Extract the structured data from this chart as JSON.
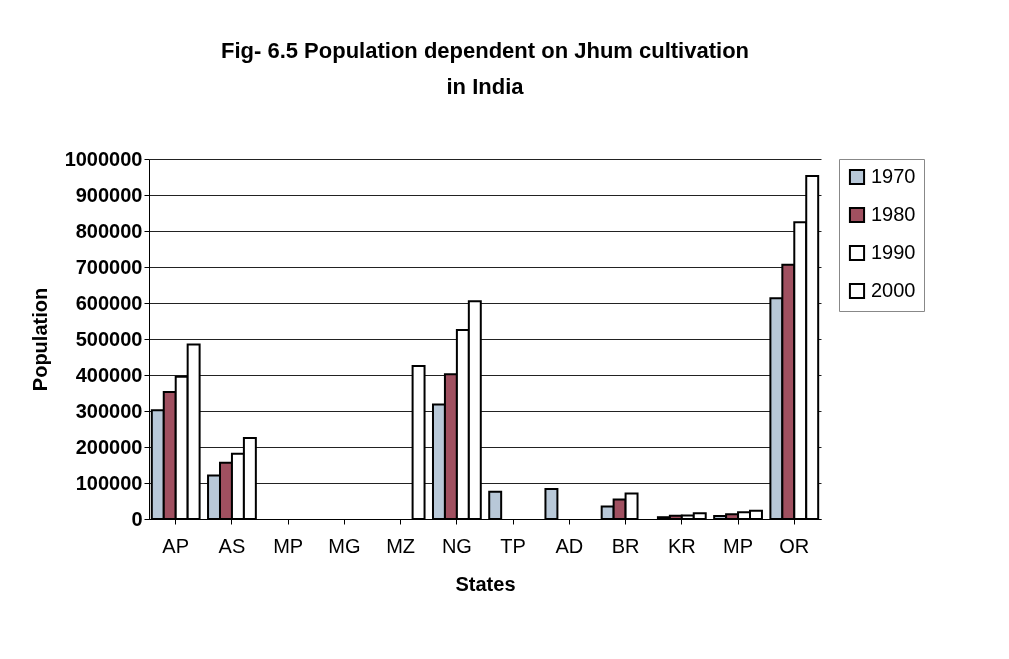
{
  "chart_data": {
    "type": "bar",
    "title": "Fig- 6.5 Population dependent on Jhum cultivation in India",
    "xlabel": "States",
    "ylabel": "Population",
    "categories": [
      "AP",
      "AS",
      "MP",
      "MG",
      "MZ",
      "NG",
      "TP",
      "AD",
      "BR",
      "KR",
      "MP",
      "OR"
    ],
    "series": [
      {
        "name": "1970",
        "color": "#b8c8d8",
        "values": [
          302000,
          121000,
          null,
          null,
          null,
          318000,
          76000,
          83000,
          35000,
          5000,
          8000,
          613000
        ]
      },
      {
        "name": "1980",
        "color": "#a05060",
        "values": [
          353000,
          156000,
          null,
          null,
          null,
          402000,
          null,
          null,
          54000,
          9000,
          13000,
          706000
        ]
      },
      {
        "name": "1990",
        "color": "#ffffff",
        "values": [
          395000,
          181000,
          null,
          null,
          null,
          525000,
          null,
          null,
          71000,
          10000,
          19000,
          824000
        ]
      },
      {
        "name": "2000",
        "color": "#ffffff",
        "values": [
          485000,
          225000,
          null,
          null,
          425000,
          605000,
          null,
          null,
          null,
          16000,
          23000,
          953000
        ]
      }
    ],
    "ylim": [
      0,
      1000000
    ],
    "yticks": [
      0,
      100000,
      200000,
      300000,
      400000,
      500000,
      600000,
      700000,
      800000,
      900000,
      1000000
    ],
    "grid": "y",
    "legend": "right"
  }
}
